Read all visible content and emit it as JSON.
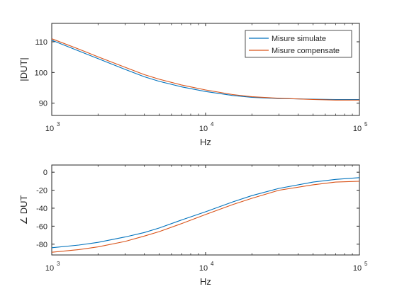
{
  "chart_data": [
    {
      "type": "line",
      "xscale": "log",
      "xlim": [
        1000,
        100000
      ],
      "ylim": [
        86,
        116
      ],
      "xlabel": "Hz",
      "ylabel": "|DUT|",
      "grid": false,
      "legend_position": "top-right",
      "x_ticks": [
        {
          "base": "10",
          "exp": "3",
          "value": 1000
        },
        {
          "base": "10",
          "exp": "4",
          "value": 10000
        },
        {
          "base": "10",
          "exp": "5",
          "value": 100000
        }
      ],
      "y_ticks": [
        {
          "label": "90",
          "value": 90
        },
        {
          "label": "100",
          "value": 100
        },
        {
          "label": "110",
          "value": 110
        }
      ],
      "series": [
        {
          "name": "Misure simulate",
          "color": "#0072BD",
          "x": [
            1000,
            1500,
            2000,
            3000,
            4000,
            5000,
            7000,
            10000,
            15000,
            20000,
            30000,
            50000,
            70000,
            100000
          ],
          "y": [
            110.5,
            107.0,
            104.5,
            101.0,
            98.6,
            97.1,
            95.3,
            93.8,
            92.5,
            91.9,
            91.5,
            91.3,
            91.2,
            91.2
          ]
        },
        {
          "name": "Misure compensate",
          "color": "#D95319",
          "x": [
            1000,
            1500,
            2000,
            3000,
            4000,
            5000,
            7000,
            10000,
            15000,
            20000,
            30000,
            50000,
            70000,
            100000
          ],
          "y": [
            111.0,
            107.6,
            105.1,
            101.7,
            99.3,
            97.8,
            95.9,
            94.3,
            92.8,
            92.1,
            91.6,
            91.2,
            91.0,
            91.0
          ]
        }
      ]
    },
    {
      "type": "line",
      "xscale": "log",
      "xlim": [
        1000,
        100000
      ],
      "ylim": [
        -92,
        8
      ],
      "xlabel": "Hz",
      "ylabel": "∠ DUT",
      "grid": false,
      "x_ticks": [
        {
          "base": "10",
          "exp": "3",
          "value": 1000
        },
        {
          "base": "10",
          "exp": "4",
          "value": 10000
        },
        {
          "base": "10",
          "exp": "5",
          "value": 100000
        }
      ],
      "y_ticks": [
        {
          "label": "-80",
          "value": -80
        },
        {
          "label": "-60",
          "value": -60
        },
        {
          "label": "-40",
          "value": -40
        },
        {
          "label": "-20",
          "value": -20
        },
        {
          "label": "0",
          "value": 0
        }
      ],
      "series": [
        {
          "name": "Misure simulate",
          "color": "#0072BD",
          "x": [
            1000,
            1500,
            2000,
            3000,
            4000,
            5000,
            7000,
            10000,
            15000,
            20000,
            30000,
            50000,
            70000,
            100000
          ],
          "y": [
            -84,
            -81,
            -78,
            -72,
            -67,
            -62,
            -53,
            -44,
            -33,
            -26,
            -18,
            -11,
            -8,
            -6
          ]
        },
        {
          "name": "Misure compensate",
          "color": "#D95319",
          "x": [
            1000,
            1500,
            2000,
            3000,
            4000,
            5000,
            7000,
            10000,
            15000,
            20000,
            30000,
            50000,
            70000,
            100000
          ],
          "y": [
            -89,
            -86,
            -83,
            -77,
            -71,
            -66,
            -57,
            -47,
            -36,
            -29,
            -20,
            -14,
            -11,
            -10
          ]
        }
      ]
    }
  ]
}
